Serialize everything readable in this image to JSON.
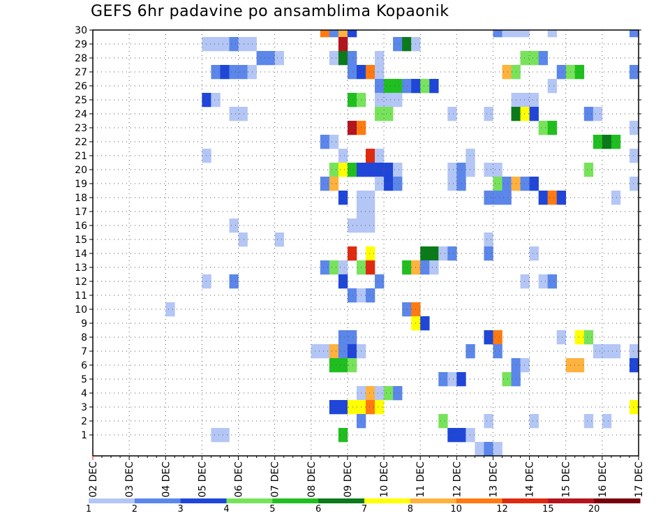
{
  "chart_data": {
    "type": "heatmap",
    "title": "GEFS 6hr padavine po ansamblima Kopaonik",
    "xlabel": "",
    "ylabel": "",
    "ylim": [
      0,
      30
    ],
    "y_ticks": [
      1,
      2,
      3,
      4,
      5,
      6,
      7,
      8,
      9,
      10,
      11,
      12,
      13,
      14,
      15,
      16,
      17,
      18,
      19,
      20,
      21,
      22,
      23,
      24,
      25,
      26,
      27,
      28,
      29,
      30
    ],
    "x_ticks": [
      "02 DEC",
      "03 DEC",
      "04 DEC",
      "05 DEC",
      "06 DEC",
      "07 DEC",
      "08 DEC",
      "09 DEC",
      "10 DEC",
      "11 DEC",
      "12 DEC",
      "13 DEC",
      "14 DEC",
      "15 DEC",
      "16 DEC",
      "17 DEC"
    ],
    "grid": true,
    "legend": {
      "placement": "bottom",
      "labels": [
        "1",
        "2",
        "3",
        "4",
        "5",
        "6",
        "7",
        "8",
        "10",
        "12",
        "15",
        "20"
      ],
      "colors": [
        "#b3c6f5",
        "#5b86ea",
        "#1f46d8",
        "#77e35a",
        "#1fbf1f",
        "#0a7a1a",
        "#ffff00",
        "#ffb23d",
        "#ff7a10",
        "#e02a10",
        "#b4141e",
        "#78000a"
      ]
    },
    "colors_by_value": {
      "1": "#b3c6f5",
      "2": "#5b86ea",
      "3": "#1f46d8",
      "4": "#77e35a",
      "5": "#1fbf1f",
      "6": "#0a7a1a",
      "7": "#ffff00",
      "8": "#ffb23d",
      "10": "#ff7a10",
      "12": "#e02a10",
      "15": "#b4141e",
      "20": "#78000a"
    },
    "x_start_day": 2,
    "steps_per_day": 4,
    "cells": [
      [
        30,
        8.25,
        10
      ],
      [
        30,
        8.5,
        2
      ],
      [
        30,
        8.75,
        8
      ],
      [
        30,
        9,
        3
      ],
      [
        30,
        13,
        2
      ],
      [
        30,
        13.25,
        1
      ],
      [
        30,
        13.5,
        1
      ],
      [
        30,
        13.75,
        1
      ],
      [
        30,
        14.5,
        1
      ],
      [
        30,
        16.75,
        2
      ],
      [
        29,
        5,
        1
      ],
      [
        29,
        5.25,
        1
      ],
      [
        29,
        5.5,
        1
      ],
      [
        29,
        5.75,
        2
      ],
      [
        29,
        6,
        1
      ],
      [
        29,
        6.25,
        1
      ],
      [
        29,
        8.75,
        15
      ],
      [
        29,
        10.25,
        2
      ],
      [
        29,
        10.5,
        6
      ],
      [
        29,
        10.75,
        1
      ],
      [
        28,
        6.5,
        2
      ],
      [
        28,
        6.75,
        2
      ],
      [
        28,
        7,
        1
      ],
      [
        28,
        8.5,
        1
      ],
      [
        28,
        8.75,
        6
      ],
      [
        28,
        9,
        2
      ],
      [
        28,
        9.75,
        1
      ],
      [
        28,
        13.75,
        4
      ],
      [
        28,
        14,
        4
      ],
      [
        28,
        14.25,
        2
      ],
      [
        27,
        5.25,
        2
      ],
      [
        27,
        5.5,
        3
      ],
      [
        27,
        5.75,
        2
      ],
      [
        27,
        6,
        2
      ],
      [
        27,
        6.25,
        1
      ],
      [
        27,
        9,
        2
      ],
      [
        27,
        9.25,
        3
      ],
      [
        27,
        9.5,
        10
      ],
      [
        27,
        9.75,
        1
      ],
      [
        27,
        13.25,
        8
      ],
      [
        27,
        13.5,
        4
      ],
      [
        27,
        14.75,
        2
      ],
      [
        27,
        15,
        4
      ],
      [
        27,
        15.25,
        5
      ],
      [
        27,
        16.75,
        2
      ],
      [
        26,
        9.75,
        2
      ],
      [
        26,
        10,
        5
      ],
      [
        26,
        10.25,
        5
      ],
      [
        26,
        10.5,
        2
      ],
      [
        26,
        10.75,
        3
      ],
      [
        26,
        11,
        4
      ],
      [
        26,
        11.25,
        3
      ],
      [
        26,
        14.5,
        1
      ],
      [
        25,
        5,
        3
      ],
      [
        25,
        5.25,
        1
      ],
      [
        25,
        9,
        5
      ],
      [
        25,
        9.25,
        4
      ],
      [
        25,
        9.75,
        1
      ],
      [
        25,
        10,
        1
      ],
      [
        25,
        10.25,
        1
      ],
      [
        25,
        13.5,
        1
      ],
      [
        25,
        13.75,
        1
      ],
      [
        25,
        14,
        1
      ],
      [
        24,
        5.75,
        1
      ],
      [
        24,
        6,
        1
      ],
      [
        24,
        9.75,
        4
      ],
      [
        24,
        10,
        4
      ],
      [
        24,
        11.75,
        1
      ],
      [
        24,
        12.75,
        1
      ],
      [
        24,
        13.5,
        6
      ],
      [
        24,
        13.75,
        7
      ],
      [
        24,
        14,
        3
      ],
      [
        24,
        15.5,
        2
      ],
      [
        24,
        15.75,
        1
      ],
      [
        23,
        9,
        15
      ],
      [
        23,
        9.25,
        10
      ],
      [
        23,
        14.25,
        4
      ],
      [
        23,
        14.5,
        5
      ],
      [
        23,
        16.75,
        1
      ],
      [
        22,
        8.25,
        2
      ],
      [
        22,
        8.5,
        1
      ],
      [
        22,
        15.75,
        5
      ],
      [
        22,
        16,
        6
      ],
      [
        22,
        16.25,
        5
      ],
      [
        21,
        5,
        1
      ],
      [
        21,
        8.75,
        1
      ],
      [
        21,
        9.5,
        12
      ],
      [
        21,
        9.75,
        1
      ],
      [
        21,
        12.25,
        1
      ],
      [
        21,
        16.75,
        1
      ],
      [
        20,
        8.5,
        4
      ],
      [
        20,
        8.75,
        7
      ],
      [
        20,
        9,
        5
      ],
      [
        20,
        9.25,
        3
      ],
      [
        20,
        9.5,
        3
      ],
      [
        20,
        9.75,
        3
      ],
      [
        20,
        10,
        3
      ],
      [
        20,
        10.25,
        1
      ],
      [
        20,
        11.75,
        1
      ],
      [
        20,
        12,
        2
      ],
      [
        20,
        12.25,
        1
      ],
      [
        20,
        12.75,
        1
      ],
      [
        20,
        13,
        1
      ],
      [
        20,
        15.5,
        4
      ],
      [
        19,
        8.25,
        2
      ],
      [
        19,
        8.5,
        8
      ],
      [
        19,
        9.75,
        1
      ],
      [
        19,
        10,
        3
      ],
      [
        19,
        10.25,
        2
      ],
      [
        19,
        11.75,
        1
      ],
      [
        19,
        12,
        2
      ],
      [
        19,
        13,
        4
      ],
      [
        19,
        13.25,
        2
      ],
      [
        19,
        13.5,
        8
      ],
      [
        19,
        13.75,
        2
      ],
      [
        19,
        14,
        3
      ],
      [
        19,
        16.75,
        1
      ],
      [
        18,
        8.75,
        3
      ],
      [
        18,
        9.25,
        1
      ],
      [
        18,
        9.5,
        1
      ],
      [
        18,
        12.75,
        2
      ],
      [
        18,
        13,
        2
      ],
      [
        18,
        13.25,
        2
      ],
      [
        18,
        14.25,
        3
      ],
      [
        18,
        14.5,
        10
      ],
      [
        18,
        14.75,
        3
      ],
      [
        18,
        16.25,
        1
      ],
      [
        17,
        9.25,
        1
      ],
      [
        17,
        9.5,
        1
      ],
      [
        16,
        5.75,
        1
      ],
      [
        16,
        9,
        1
      ],
      [
        16,
        9.25,
        1
      ],
      [
        16,
        9.5,
        1
      ],
      [
        15,
        6,
        1
      ],
      [
        15,
        7,
        1
      ],
      [
        15,
        12.75,
        1
      ],
      [
        14,
        9,
        12
      ],
      [
        14,
        9.5,
        7
      ],
      [
        14,
        11,
        6
      ],
      [
        14,
        11.25,
        6
      ],
      [
        14,
        11.5,
        1
      ],
      [
        14,
        11.75,
        2
      ],
      [
        14,
        12.75,
        2
      ],
      [
        14,
        14,
        1
      ],
      [
        13,
        8.25,
        2
      ],
      [
        13,
        8.5,
        4
      ],
      [
        13,
        8.75,
        1
      ],
      [
        13,
        9.25,
        4
      ],
      [
        13,
        9.5,
        12
      ],
      [
        13,
        10.5,
        5
      ],
      [
        13,
        10.75,
        8
      ],
      [
        13,
        11,
        2
      ],
      [
        13,
        11.25,
        1
      ],
      [
        12,
        5,
        1
      ],
      [
        12,
        5.75,
        2
      ],
      [
        12,
        8.75,
        3
      ],
      [
        12,
        9.75,
        2
      ],
      [
        12,
        13.75,
        1
      ],
      [
        12,
        14.25,
        1
      ],
      [
        12,
        14.5,
        2
      ],
      [
        11,
        9,
        2
      ],
      [
        11,
        9.25,
        1
      ],
      [
        11,
        9.5,
        2
      ],
      [
        10,
        4,
        1
      ],
      [
        10,
        10.5,
        2
      ],
      [
        10,
        10.75,
        10
      ],
      [
        9,
        10.75,
        7
      ],
      [
        9,
        11,
        3
      ],
      [
        8,
        8.75,
        2
      ],
      [
        8,
        9,
        2
      ],
      [
        8,
        12.75,
        3
      ],
      [
        8,
        13,
        10
      ],
      [
        8,
        14.75,
        1
      ],
      [
        8,
        15.25,
        7
      ],
      [
        8,
        15.5,
        4
      ],
      [
        7,
        8,
        1
      ],
      [
        7,
        8.25,
        1
      ],
      [
        7,
        8.5,
        8
      ],
      [
        7,
        8.75,
        2
      ],
      [
        7,
        9,
        3
      ],
      [
        7,
        9.25,
        1
      ],
      [
        7,
        12.25,
        2
      ],
      [
        7,
        13,
        2
      ],
      [
        7,
        15.75,
        1
      ],
      [
        7,
        16,
        1
      ],
      [
        7,
        16.25,
        1
      ],
      [
        7,
        16.75,
        1
      ],
      [
        6,
        8.5,
        5
      ],
      [
        6,
        8.75,
        5
      ],
      [
        6,
        9,
        4
      ],
      [
        6,
        13.5,
        2
      ],
      [
        6,
        13.75,
        1
      ],
      [
        6,
        15,
        8
      ],
      [
        6,
        15.25,
        8
      ],
      [
        6,
        16.75,
        3
      ],
      [
        5,
        11.5,
        2
      ],
      [
        5,
        11.75,
        1
      ],
      [
        5,
        12,
        3
      ],
      [
        5,
        13.25,
        4
      ],
      [
        5,
        13.5,
        2
      ],
      [
        4,
        9.25,
        1
      ],
      [
        4,
        9.5,
        8
      ],
      [
        4,
        9.75,
        1
      ],
      [
        4,
        10,
        4
      ],
      [
        4,
        10.25,
        2
      ],
      [
        3,
        8.5,
        3
      ],
      [
        3,
        8.75,
        3
      ],
      [
        3,
        9,
        7
      ],
      [
        3,
        9.25,
        7
      ],
      [
        3,
        9.5,
        10
      ],
      [
        3,
        9.75,
        7
      ],
      [
        3,
        16.75,
        7
      ],
      [
        2,
        9.25,
        2
      ],
      [
        2,
        11.5,
        4
      ],
      [
        2,
        12.75,
        1
      ],
      [
        2,
        14,
        1
      ],
      [
        2,
        15.5,
        1
      ],
      [
        2,
        16,
        1
      ],
      [
        1,
        5.25,
        1
      ],
      [
        1,
        5.5,
        1
      ],
      [
        1,
        8.75,
        5
      ],
      [
        1,
        11.75,
        3
      ],
      [
        1,
        12,
        3
      ],
      [
        1,
        12.25,
        1
      ],
      [
        0,
        12.5,
        1
      ],
      [
        0,
        12.75,
        2
      ],
      [
        0,
        13,
        1
      ]
    ]
  }
}
